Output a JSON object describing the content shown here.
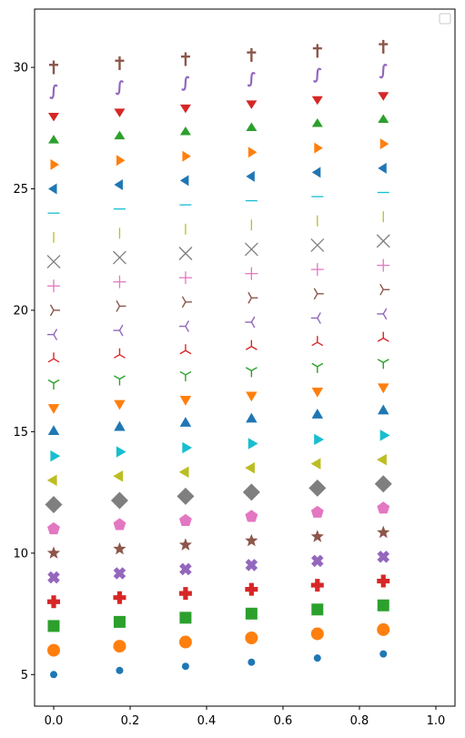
{
  "chart_data": {
    "type": "scatter",
    "title": "",
    "xlabel": "",
    "ylabel": "",
    "xlim": [
      -0.05,
      1.05
    ],
    "ylim": [
      3.7,
      32.4
    ],
    "grid": false,
    "legend": {
      "placement": "top-right",
      "entries": []
    },
    "x": [
      0.0,
      0.1725,
      0.345,
      0.5175,
      0.69,
      0.8625
    ],
    "x_ticks": [
      {
        "value": 0.0,
        "label": "0.0"
      },
      {
        "value": 0.2,
        "label": "0.2"
      },
      {
        "value": 0.4,
        "label": "0.4"
      },
      {
        "value": 0.6,
        "label": "0.6"
      },
      {
        "value": 0.8,
        "label": "0.8"
      },
      {
        "value": 1.0,
        "label": "1.0"
      }
    ],
    "y_ticks": [
      {
        "value": 5,
        "label": "5"
      },
      {
        "value": 10,
        "label": "10"
      },
      {
        "value": 15,
        "label": "15"
      },
      {
        "value": 20,
        "label": "20"
      },
      {
        "value": 25,
        "label": "25"
      },
      {
        "value": 30,
        "label": "30"
      }
    ],
    "y_step_per_column": 0.17,
    "series": [
      {
        "marker": "point",
        "y0": 5,
        "color": "#1f77b4"
      },
      {
        "marker": "circle",
        "y0": 6,
        "color": "#ff7f0e"
      },
      {
        "marker": "square",
        "y0": 7,
        "color": "#2ca02c"
      },
      {
        "marker": "plus-filled",
        "y0": 8,
        "color": "#d62728"
      },
      {
        "marker": "x-filled",
        "y0": 9,
        "color": "#9467bd"
      },
      {
        "marker": "star",
        "y0": 10,
        "color": "#8c564b"
      },
      {
        "marker": "pentagon",
        "y0": 11,
        "color": "#e377c2"
      },
      {
        "marker": "diamond",
        "y0": 12,
        "color": "#7f7f7f"
      },
      {
        "marker": "triangle-left",
        "y0": 13,
        "color": "#bcbd22"
      },
      {
        "marker": "triangle-right",
        "y0": 14,
        "color": "#17becf"
      },
      {
        "marker": "triangle-up",
        "y0": 15,
        "color": "#1f77b4"
      },
      {
        "marker": "triangle-down",
        "y0": 16,
        "color": "#ff7f0e"
      },
      {
        "marker": "tri-down",
        "y0": 17,
        "color": "#2ca02c"
      },
      {
        "marker": "tri-up",
        "y0": 18,
        "color": "#d62728"
      },
      {
        "marker": "tri-left",
        "y0": 19,
        "color": "#9467bd"
      },
      {
        "marker": "tri-right",
        "y0": 20,
        "color": "#8c564b"
      },
      {
        "marker": "plus",
        "y0": 21,
        "color": "#e377c2"
      },
      {
        "marker": "x",
        "y0": 22,
        "color": "#7f7f7f"
      },
      {
        "marker": "vline",
        "y0": 23,
        "color": "#bcbd22"
      },
      {
        "marker": "hline",
        "y0": 24,
        "color": "#17becf"
      },
      {
        "marker": "caret-left",
        "y0": 25,
        "color": "#1f77b4"
      },
      {
        "marker": "caret-right",
        "y0": 26,
        "color": "#ff7f0e"
      },
      {
        "marker": "caret-up",
        "y0": 27,
        "color": "#2ca02c"
      },
      {
        "marker": "caret-down",
        "y0": 28,
        "color": "#d62728"
      },
      {
        "marker": "integral",
        "y0": 29,
        "color": "#9467bd"
      },
      {
        "marker": "dagger",
        "y0": 30,
        "color": "#8c564b"
      }
    ]
  }
}
